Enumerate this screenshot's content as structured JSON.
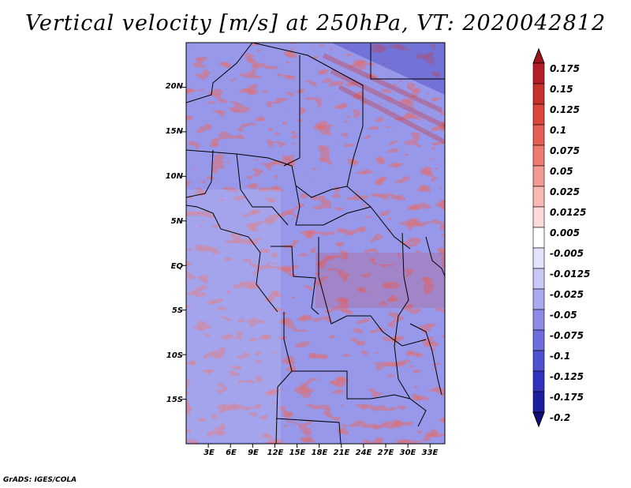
{
  "title": "Vertical velocity [m/s] at 250hPa, VT: 2020042812",
  "credit": "GrADS: IGES/COLA",
  "map": {
    "field": "vertical velocity",
    "units": "m/s",
    "level": "250hPa",
    "valid_time": "2020042812",
    "lat_range": [
      -20,
      25
    ],
    "lon_range": [
      0,
      35
    ],
    "lat_ticks": [
      "20N",
      "15N",
      "10N",
      "5N",
      "EQ",
      "5S",
      "10S",
      "15S"
    ],
    "lon_ticks": [
      "3E",
      "6E",
      "9E",
      "12E",
      "15E",
      "18E",
      "21E",
      "24E",
      "27E",
      "30E",
      "33E"
    ]
  },
  "colorbar": {
    "labels": [
      "0.175",
      "0.15",
      "0.125",
      "0.1",
      "0.075",
      "0.05",
      "0.025",
      "0.0125",
      "0.005",
      "-0.005",
      "-0.0125",
      "-0.025",
      "-0.05",
      "-0.075",
      "-0.1",
      "-0.125",
      "-0.175",
      "-0.2"
    ],
    "colors": [
      "#a0141e",
      "#b41e28",
      "#c8322d",
      "#dc463c",
      "#e65f55",
      "#ed7b72",
      "#f39a93",
      "#f8b9b4",
      "#fcdad8",
      "#ffffff",
      "#e3e3fb",
      "#c8c8f5",
      "#aaaaef",
      "#8c8ce6",
      "#6e6edc",
      "#5050d2",
      "#3232be",
      "#1e1ea0",
      "#0f0f78"
    ]
  }
}
